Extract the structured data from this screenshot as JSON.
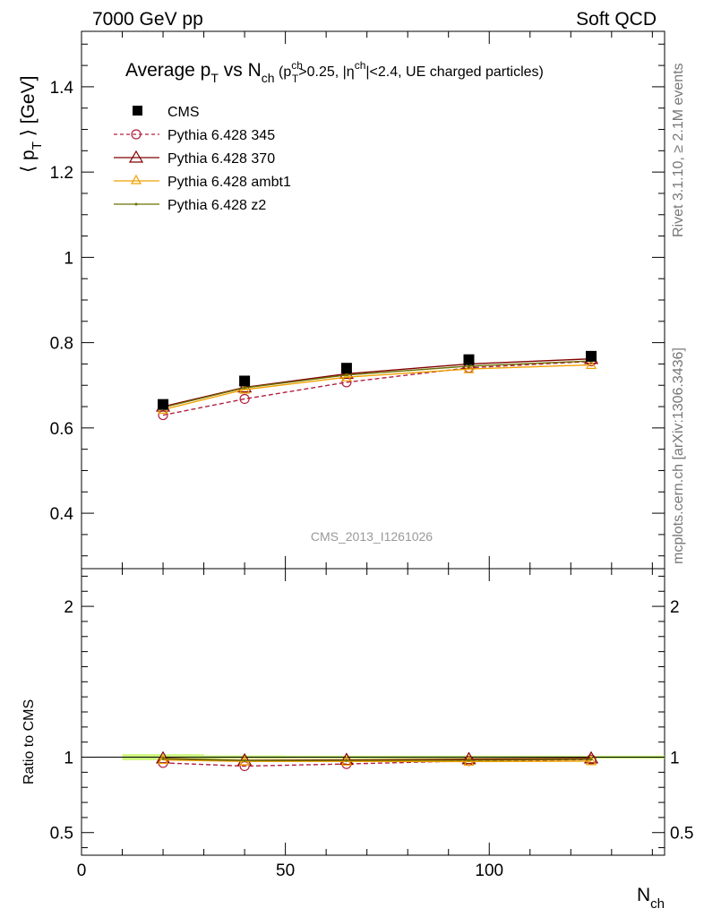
{
  "header": {
    "left": "7000 GeV pp",
    "right": "Soft QCD"
  },
  "side_text": {
    "rivet": "Rivet 3.1.10, ≥ 2.1M events",
    "mcplots": "mcplots.cern.ch [arXiv:1306.3436]"
  },
  "chart_data": {
    "type": "line",
    "title": {
      "main": "Average p",
      "main_sub": "T",
      "vs": " vs N",
      "vs_sub": "ch",
      "cut_open": " (p",
      "cut_sup": "ch",
      "cut_sub": "T",
      "cut_mid": ">0.25, |η",
      "cut_sup2": "ch",
      "cut_end": "|<2.4, UE charged particles)"
    },
    "analysis_label": "CMS_2013_I1261026",
    "xlabel": {
      "main": "N",
      "sub": "ch"
    },
    "ylabel": {
      "open": "⟨ p",
      "sub": "T",
      "close": " ⟩ [GeV]"
    },
    "ratio_ylabel": "Ratio to CMS",
    "xlim": [
      0,
      143
    ],
    "ylim": [
      0.27,
      1.53
    ],
    "ratio_ylim": [
      0.35,
      2.25
    ],
    "x_ticks": [
      "0",
      "50",
      "100"
    ],
    "y_ticks": [
      "0.4",
      "0.6",
      "0.8",
      "1",
      "1.2",
      "1.4"
    ],
    "ratio_y_ticks": [
      "0.5",
      "1",
      "2"
    ],
    "x": [
      20,
      40,
      65,
      95,
      125
    ],
    "series": [
      {
        "name": "CMS",
        "style": "data",
        "color": "#000000",
        "values": [
          0.655,
          0.71,
          0.74,
          0.76,
          0.768
        ],
        "ratio": [
          1.0,
          1.0,
          1.0,
          1.0,
          1.0
        ]
      },
      {
        "name": "Pythia 6.428 345",
        "style": "dashed-circle",
        "color": "#b22040",
        "values": [
          0.63,
          0.668,
          0.707,
          0.741,
          0.756
        ],
        "ratio": [
          0.962,
          0.941,
          0.955,
          0.975,
          0.984
        ]
      },
      {
        "name": "Pythia 6.428 370",
        "style": "solid-triangle",
        "color": "#800000",
        "values": [
          0.65,
          0.695,
          0.727,
          0.75,
          0.762
        ],
        "ratio": [
          0.992,
          0.979,
          0.982,
          0.987,
          0.992
        ]
      },
      {
        "name": "Pythia 6.428 ambt1",
        "style": "solid-triangle-small",
        "color": "#f0a000",
        "values": [
          0.643,
          0.69,
          0.719,
          0.738,
          0.748
        ],
        "ratio": [
          0.982,
          0.972,
          0.972,
          0.971,
          0.974
        ]
      },
      {
        "name": "Pythia 6.428 z2",
        "style": "solid-dot",
        "color": "#6b7000",
        "values": [
          0.648,
          0.694,
          0.724,
          0.745,
          0.757
        ],
        "ratio": [
          0.989,
          0.977,
          0.978,
          0.98,
          0.986
        ]
      }
    ],
    "ratio_band": [
      {
        "x0": 10,
        "x1": 30,
        "half_width": 0.02
      },
      {
        "x0": 30,
        "x1": 50,
        "half_width": 0.012
      },
      {
        "x0": 50,
        "x1": 80,
        "half_width": 0.01
      },
      {
        "x0": 80,
        "x1": 110,
        "half_width": 0.01
      },
      {
        "x0": 110,
        "x1": 143,
        "half_width": 0.01
      }
    ]
  }
}
